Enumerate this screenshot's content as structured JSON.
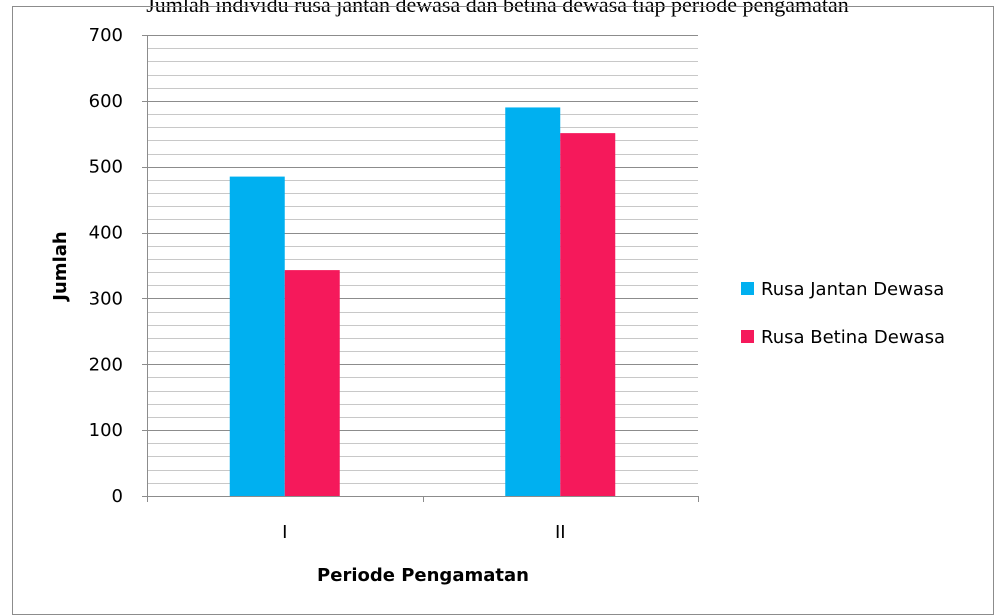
{
  "caption_cut": "Jumlah individu rusa jantan dewasa dan betina dewasa tiap periode pengamatan",
  "chart_data": {
    "type": "bar",
    "title": "",
    "categories": [
      "I",
      "II"
    ],
    "series": [
      {
        "name": "Rusa Jantan Dewasa",
        "values": [
          485,
          590
        ],
        "color": "#00b0f0"
      },
      {
        "name": "Rusa Betina Dewasa",
        "values": [
          343,
          551
        ],
        "color": "#f5195b"
      }
    ],
    "xlabel": "Periode Pengamatan",
    "ylabel": "Jumlah",
    "ylim": [
      0,
      700
    ],
    "yticks": [
      0,
      100,
      200,
      300,
      400,
      500,
      600,
      700
    ],
    "grid": true,
    "legend_position": "right"
  }
}
